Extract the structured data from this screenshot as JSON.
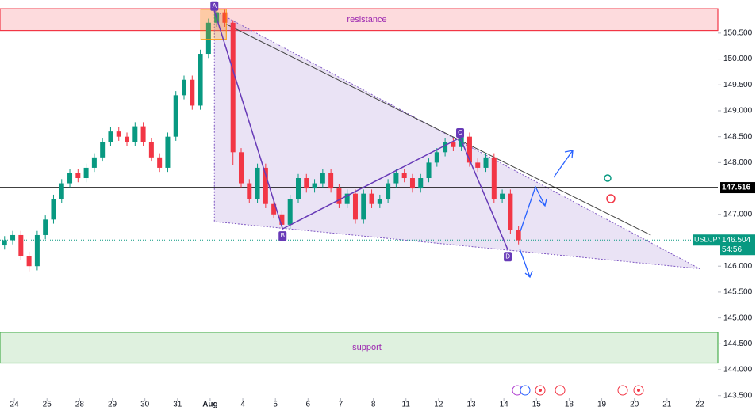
{
  "chart_data": {
    "type": "candlestick",
    "symbol": "USDJPY",
    "last_price": 146.504,
    "countdown": "54:56",
    "horizontal_line": 147.516,
    "xlim": [
      -0.44,
      21.56
    ],
    "ylim": [
      143.45,
      151.14
    ],
    "xticks": [
      {
        "value": 0,
        "label": "24"
      },
      {
        "value": 1,
        "label": "25"
      },
      {
        "value": 2,
        "label": "28"
      },
      {
        "value": 3,
        "label": "29"
      },
      {
        "value": 4,
        "label": "30"
      },
      {
        "value": 5,
        "label": "31"
      },
      {
        "value": 6,
        "label": "Aug"
      },
      {
        "value": 7,
        "label": "4"
      },
      {
        "value": 8,
        "label": "5"
      },
      {
        "value": 9,
        "label": "6"
      },
      {
        "value": 10,
        "label": "7"
      },
      {
        "value": 11,
        "label": "8"
      },
      {
        "value": 12,
        "label": "11"
      },
      {
        "value": 13,
        "label": "12"
      },
      {
        "value": 14,
        "label": "13"
      },
      {
        "value": 15,
        "label": "14"
      },
      {
        "value": 16,
        "label": "15"
      },
      {
        "value": 17,
        "label": "18"
      },
      {
        "value": 18,
        "label": "19"
      },
      {
        "value": 19,
        "label": "20"
      },
      {
        "value": 20,
        "label": "21"
      },
      {
        "value": 21,
        "label": "22"
      }
    ],
    "yticks": [
      {
        "value": 150.5,
        "label": "150.500"
      },
      {
        "value": 150,
        "label": "150.000"
      },
      {
        "value": 149.5,
        "label": "149.500"
      },
      {
        "value": 149,
        "label": "149.000"
      },
      {
        "value": 148.5,
        "label": "148.500"
      },
      {
        "value": 148,
        "label": "148.000"
      },
      {
        "value": 147,
        "label": "147.000"
      },
      {
        "value": 146.5,
        "label": "146.500"
      },
      {
        "value": 146,
        "label": "146.000"
      },
      {
        "value": 145.5,
        "label": "145.500"
      },
      {
        "value": 145,
        "label": "145.000"
      },
      {
        "value": 144.5,
        "label": "144.500"
      },
      {
        "value": 144,
        "label": "144.000"
      },
      {
        "value": 143.5,
        "label": "143.500"
      }
    ],
    "up_color": "#089981",
    "down_color": "#f23645",
    "x": [
      -0.3,
      -0.05,
      0.2,
      0.45,
      0.7,
      0.95,
      1.2,
      1.45,
      1.7,
      1.95,
      2.2,
      2.45,
      2.7,
      2.95,
      3.2,
      3.45,
      3.7,
      3.95,
      4.2,
      4.45,
      4.7,
      4.95,
      5.2,
      5.45,
      5.7,
      5.95,
      6.2,
      6.45,
      6.7,
      6.95,
      7.2,
      7.45,
      7.7,
      7.95,
      8.2,
      8.45,
      8.7,
      8.95,
      9.2,
      9.45,
      9.7,
      9.95,
      10.2,
      10.45,
      10.7,
      10.95,
      11.2,
      11.45,
      11.7,
      11.95,
      12.2,
      12.45,
      12.7,
      12.95,
      13.2,
      13.45,
      13.7,
      13.95,
      14.2,
      14.45,
      14.7,
      14.95,
      15.2,
      15.45
    ],
    "ohlc": [
      [
        146.4,
        146.58,
        146.32,
        146.5
      ],
      [
        146.5,
        146.68,
        146.42,
        146.6
      ],
      [
        146.6,
        146.68,
        146.12,
        146.2
      ],
      [
        146.2,
        146.28,
        145.9,
        146.0
      ],
      [
        146.0,
        146.68,
        145.92,
        146.6
      ],
      [
        146.6,
        146.98,
        146.52,
        146.9
      ],
      [
        146.9,
        147.38,
        146.82,
        147.3
      ],
      [
        147.3,
        147.68,
        147.22,
        147.6
      ],
      [
        147.6,
        147.88,
        147.52,
        147.8
      ],
      [
        147.8,
        147.88,
        147.62,
        147.7
      ],
      [
        147.7,
        147.98,
        147.62,
        147.9
      ],
      [
        147.9,
        148.18,
        147.82,
        148.1
      ],
      [
        148.1,
        148.48,
        148.02,
        148.4
      ],
      [
        148.4,
        148.68,
        148.32,
        148.6
      ],
      [
        148.6,
        148.68,
        148.42,
        148.5
      ],
      [
        148.5,
        148.58,
        148.32,
        148.4
      ],
      [
        148.4,
        148.78,
        148.32,
        148.7
      ],
      [
        148.7,
        148.78,
        148.32,
        148.4
      ],
      [
        148.4,
        148.48,
        148.02,
        148.1
      ],
      [
        148.1,
        148.18,
        147.82,
        147.9
      ],
      [
        147.9,
        148.58,
        147.82,
        148.5
      ],
      [
        148.5,
        149.38,
        148.42,
        149.3
      ],
      [
        149.3,
        149.68,
        149.22,
        149.6
      ],
      [
        149.6,
        149.68,
        149.02,
        149.1
      ],
      [
        149.1,
        150.18,
        149.02,
        150.1
      ],
      [
        150.1,
        150.78,
        150.02,
        150.7
      ],
      [
        150.7,
        150.98,
        150.62,
        150.9
      ],
      [
        150.9,
        150.95,
        150.62,
        150.7
      ],
      [
        150.7,
        150.75,
        147.95,
        148.2
      ],
      [
        148.2,
        148.28,
        147.52,
        147.6
      ],
      [
        147.6,
        147.68,
        147.22,
        147.3
      ],
      [
        147.3,
        147.98,
        147.22,
        147.9
      ],
      [
        147.9,
        147.98,
        147.12,
        147.2
      ],
      [
        147.2,
        147.28,
        146.92,
        147.0
      ],
      [
        147.0,
        147.08,
        146.72,
        146.8
      ],
      [
        146.8,
        147.38,
        146.72,
        147.3
      ],
      [
        147.3,
        147.78,
        147.22,
        147.7
      ],
      [
        147.7,
        147.78,
        147.42,
        147.5
      ],
      [
        147.5,
        147.68,
        147.42,
        147.6
      ],
      [
        147.6,
        147.88,
        147.52,
        147.8
      ],
      [
        147.8,
        147.88,
        147.42,
        147.5
      ],
      [
        147.5,
        147.58,
        147.12,
        147.2
      ],
      [
        147.2,
        147.48,
        147.12,
        147.4
      ],
      [
        147.4,
        147.48,
        146.82,
        146.9
      ],
      [
        146.9,
        147.48,
        146.82,
        147.4
      ],
      [
        147.4,
        147.48,
        147.12,
        147.2
      ],
      [
        147.2,
        147.38,
        147.12,
        147.3
      ],
      [
        147.3,
        147.68,
        147.22,
        147.6
      ],
      [
        147.6,
        147.88,
        147.52,
        147.8
      ],
      [
        147.8,
        147.88,
        147.62,
        147.7
      ],
      [
        147.7,
        147.78,
        147.42,
        147.5
      ],
      [
        147.5,
        147.78,
        147.42,
        147.7
      ],
      [
        147.7,
        148.08,
        147.62,
        148.0
      ],
      [
        148.0,
        148.28,
        147.92,
        148.2
      ],
      [
        148.2,
        148.48,
        148.12,
        148.4
      ],
      [
        148.4,
        148.48,
        148.22,
        148.3
      ],
      [
        148.3,
        148.58,
        148.22,
        148.5
      ],
      [
        148.5,
        148.58,
        147.92,
        148.0
      ],
      [
        148.0,
        148.08,
        147.82,
        147.9
      ],
      [
        147.9,
        148.18,
        147.82,
        148.1
      ],
      [
        148.1,
        148.18,
        147.22,
        147.3
      ],
      [
        147.3,
        147.48,
        147.22,
        147.4
      ],
      [
        147.4,
        147.48,
        146.62,
        146.7
      ],
      [
        146.7,
        146.78,
        146.42,
        146.5
      ]
    ],
    "zones": [
      {
        "label": "resistance",
        "range": [
          150.55,
          150.97
        ],
        "color": "#f23645"
      },
      {
        "label": "support",
        "range": [
          144.13,
          144.72
        ],
        "color": "#4caf50"
      }
    ],
    "triangle": {
      "x": [
        6.13,
        6.13,
        21
      ],
      "y": [
        150.93,
        146.86,
        145.95
      ]
    },
    "trend_line": {
      "x": [
        6.5,
        19.5
      ],
      "y": [
        150.67,
        146.6
      ]
    },
    "pattern": {
      "labels": [
        "A",
        "B",
        "C",
        "D"
      ],
      "x": [
        6.13,
        8.22,
        13.66,
        15.12
      ],
      "y": [
        150.93,
        146.72,
        148.48,
        146.32
      ]
    }
  }
}
